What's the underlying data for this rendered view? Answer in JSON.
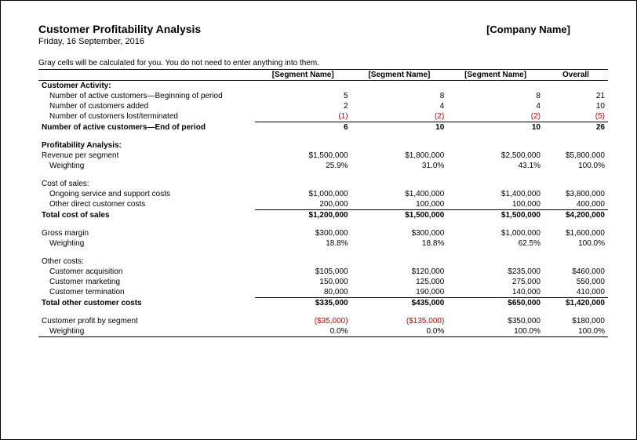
{
  "header": {
    "title": "Customer Profitability Analysis",
    "company": "[Company Name]",
    "date": "Friday, 16 September, 2016",
    "instruction": "Gray cells will be calculated for you. You do not need to enter anything into them."
  },
  "columns": [
    "",
    "[Segment Name]",
    "[Segment Name]",
    "[Segment Name]",
    "Overall"
  ],
  "sections": {
    "customer_activity": {
      "label": "Customer Activity:",
      "rows": [
        {
          "label": "Number of active customers—Beginning of period",
          "indent": 1,
          "values": [
            "5",
            "8",
            "8",
            "21"
          ]
        },
        {
          "label": "Number of customers added",
          "indent": 1,
          "values": [
            "2",
            "4",
            "4",
            "10"
          ]
        },
        {
          "label": "Number of customers lost/terminated",
          "indent": 1,
          "values": [
            "(1)",
            "(2)",
            "(2)",
            "(5)"
          ],
          "red": true,
          "underline": true
        }
      ],
      "total": {
        "label": "Number of active customers—End of period",
        "values": [
          "6",
          "10",
          "10",
          "26"
        ]
      }
    },
    "profitability": {
      "label": "Profitability Analysis:",
      "rows": [
        {
          "label": "Revenue per segment",
          "indent": 0,
          "values": [
            "$1,500,000",
            "$1,800,000",
            "$2,500,000",
            "$5,800,000"
          ]
        },
        {
          "label": "Weighting",
          "indent": 1,
          "values": [
            "25.9%",
            "31.0%",
            "43.1%",
            "100.0%"
          ]
        }
      ]
    },
    "cost_of_sales": {
      "label": "Cost of sales:",
      "rows": [
        {
          "label": "Ongoing service and support costs",
          "indent": 1,
          "values": [
            "$1,000,000",
            "$1,400,000",
            "$1,400,000",
            "$3,800,000"
          ]
        },
        {
          "label": "Other direct customer costs",
          "indent": 1,
          "values": [
            "200,000",
            "100,000",
            "100,000",
            "400,000"
          ],
          "underline": true
        }
      ],
      "total": {
        "label": "Total cost of sales",
        "values": [
          "$1,200,000",
          "$1,500,000",
          "$1,500,000",
          "$4,200,000"
        ]
      }
    },
    "gross_margin": {
      "rows": [
        {
          "label": "Gross margin",
          "indent": 0,
          "values": [
            "$300,000",
            "$300,000",
            "$1,000,000",
            "$1,600,000"
          ]
        },
        {
          "label": "Weighting",
          "indent": 1,
          "values": [
            "18.8%",
            "18.8%",
            "62.5%",
            "100.0%"
          ]
        }
      ]
    },
    "other_costs": {
      "label": "Other costs:",
      "rows": [
        {
          "label": "Customer acquisition",
          "indent": 1,
          "values": [
            "$105,000",
            "$120,000",
            "$235,000",
            "$460,000"
          ]
        },
        {
          "label": "Customer marketing",
          "indent": 1,
          "values": [
            "150,000",
            "125,000",
            "275,000",
            "550,000"
          ]
        },
        {
          "label": "Customer termination",
          "indent": 1,
          "values": [
            "80,000",
            "190,000",
            "140,000",
            "410,000"
          ],
          "underline": true
        }
      ],
      "total": {
        "label": "Total other customer costs",
        "values": [
          "$335,000",
          "$435,000",
          "$650,000",
          "$1,420,000"
        ]
      }
    },
    "profit": {
      "rows": [
        {
          "label": "Customer profit by segment",
          "indent": 0,
          "values": [
            "($35,000)",
            "($135,000)",
            "$350,000",
            "$180,000"
          ],
          "red_cols": [
            0,
            1
          ]
        },
        {
          "label": "Weighting",
          "indent": 1,
          "values": [
            "0.0%",
            "0.0%",
            "100.0%",
            "100.0%"
          ],
          "bottomline": true
        }
      ]
    }
  },
  "style": {
    "font_family": "Arial",
    "base_fontsize": 10,
    "title_fontsize": 14,
    "red_color": "#d00000",
    "text_color": "#000000",
    "background_color": "#ffffff",
    "border_color": "#000000"
  }
}
